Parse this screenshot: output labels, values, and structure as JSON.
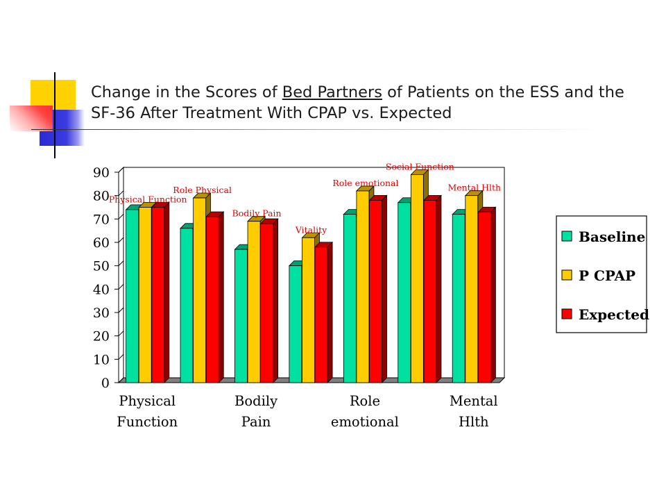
{
  "slide": {
    "title_part1": "Change in the Scores of ",
    "title_underlined": "Bed Partners",
    "title_part2": " of Patients on the ESS and the SF-36 After Treatment With CPAP vs. Expected",
    "colors": {
      "deco_yellow": "#ffd200",
      "deco_blue": "#3030d8",
      "deco_red": "#ff4040"
    }
  },
  "chart_data": {
    "type": "bar",
    "title": "",
    "xlabel": "",
    "ylabel": "",
    "ylim": [
      0,
      90
    ],
    "yticks": [
      "0",
      "10",
      "20",
      "30",
      "40",
      "50",
      "60",
      "70",
      "80",
      "90"
    ],
    "categories": [
      "Physical Function",
      "Role Physical",
      "Bodily Pain",
      "Vitality",
      "Role emotional",
      "Social Function",
      "Mental Hlth"
    ],
    "axis_labels": [
      {
        "line1": "Physical",
        "line2": "Function",
        "category_index": 0
      },
      {
        "line1": "Bodily",
        "line2": "Pain",
        "category_index": 2
      },
      {
        "line1": "Role",
        "line2": "emotional",
        "category_index": 4
      },
      {
        "line1": "Mental",
        "line2": "Hlth",
        "category_index": 6
      }
    ],
    "data_labels": [
      "Physical Function",
      "Role Physical",
      "Bodily Pain",
      "Vitality",
      "Role emotional",
      "Social Function",
      "Mental Hlth"
    ],
    "series": [
      {
        "name": "Baseline",
        "color": "#00e0a0",
        "values": [
          74,
          66,
          57,
          50,
          72,
          77,
          72
        ]
      },
      {
        "name": "P CPAP",
        "color": "#ffcc00",
        "values": [
          75,
          79,
          69,
          62,
          82,
          89,
          80
        ]
      },
      {
        "name": "Expected",
        "color": "#ff0000",
        "values": [
          75,
          71,
          68,
          58,
          78,
          78,
          73
        ]
      }
    ],
    "style": "3d-clustered",
    "grid": false,
    "legend": "right"
  }
}
